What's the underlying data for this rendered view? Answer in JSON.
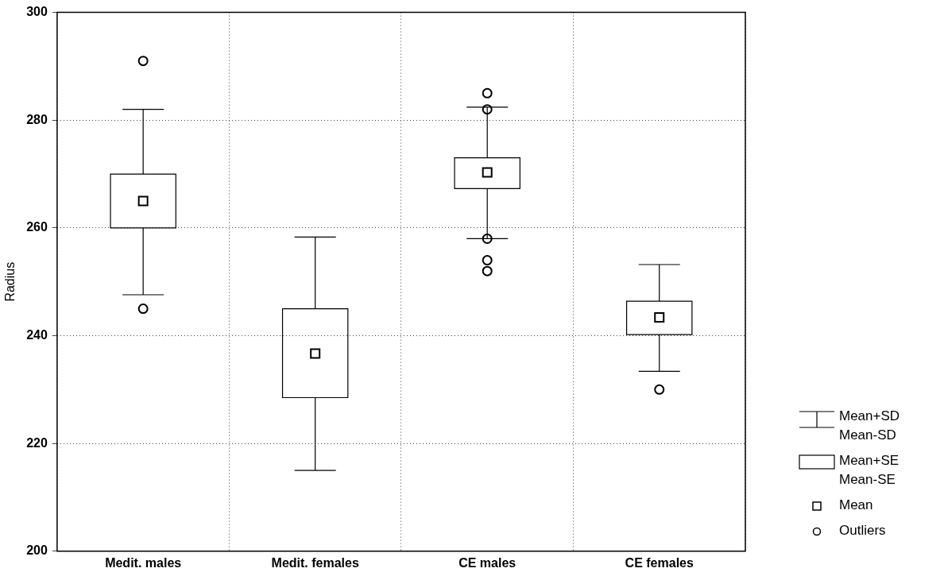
{
  "chart_data": {
    "type": "box",
    "ylabel": "Radius",
    "categories": [
      "Medit. males",
      "Medit. females",
      "CE males",
      "CE females"
    ],
    "boxes": [
      {
        "low": 247.6,
        "q1": 260,
        "median": null,
        "q3": 270,
        "high": 282,
        "mean": 265,
        "outliers": [
          291,
          245
        ]
      },
      {
        "low": 215,
        "q1": 228.5,
        "median": null,
        "q3": 245,
        "high": 258.3,
        "mean": 236.7
      },
      {
        "low": 258,
        "q1": 267.3,
        "median": null,
        "q3": 273,
        "high": 282.4,
        "mean": 270.3,
        "outliers": [
          285,
          282,
          258,
          254,
          252
        ]
      },
      {
        "low": 233.4,
        "q1": 240.2,
        "median": null,
        "q3": 246.4,
        "high": 253.2,
        "mean": 243.4,
        "outliers": [
          230
        ]
      }
    ],
    "color": "#000000",
    "ylim": [
      200,
      300
    ],
    "yticks": [
      200,
      220,
      240,
      260,
      280,
      300
    ],
    "grid": true,
    "annotations": [
      "Mean+SD\nMean-SD",
      "Mean+SE\nMean-SE",
      "Mean",
      "Outliers"
    ]
  }
}
